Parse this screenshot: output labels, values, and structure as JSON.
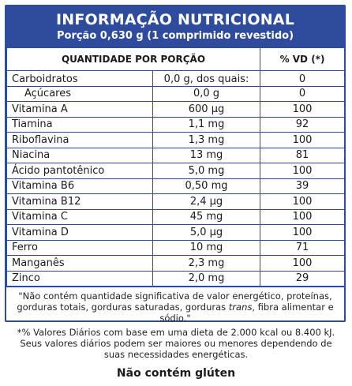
{
  "header": {
    "title": "INFORMAÇÃO NUTRICIONAL",
    "serving": "Porção 0,630 g (1 comprimido revestido)"
  },
  "table": {
    "col_quantity": "QUANTIDADE POR PORÇÃO",
    "col_vd": "% VD (*)",
    "rows": [
      {
        "name": "Carboidratos",
        "amount": "0,0 g, dos quais:",
        "vd": "0"
      },
      {
        "name": "Açúcares",
        "amount": "0,0 g",
        "vd": "0"
      },
      {
        "name": "Vitamina A",
        "amount": "600 µg",
        "vd": "100"
      },
      {
        "name": "Tiamina",
        "amount": "1,1 mg",
        "vd": "92"
      },
      {
        "name": "Riboflavina",
        "amount": "1,3 mg",
        "vd": "100"
      },
      {
        "name": "Niacina",
        "amount": "13 mg",
        "vd": "81"
      },
      {
        "name": "Ácido pantotênico",
        "amount": "5,0 mg",
        "vd": "100"
      },
      {
        "name": "Vitamina B6",
        "amount": "0,50 mg",
        "vd": "39"
      },
      {
        "name": "Vitamina B12",
        "amount": "2,4 µg",
        "vd": "100"
      },
      {
        "name": "Vitamina C",
        "amount": "45 mg",
        "vd": "100"
      },
      {
        "name": "Vitamina D",
        "amount": "5,0 µg",
        "vd": "100"
      },
      {
        "name": "Ferro",
        "amount": "10 mg",
        "vd": "71"
      },
      {
        "name": "Manganês",
        "amount": "2,3 mg",
        "vd": "100"
      },
      {
        "name": "Zinco",
        "amount": "2,0 mg",
        "vd": "29"
      }
    ]
  },
  "note": {
    "line1": "\"Não contém quantidade significativa de valor energético, proteínas,",
    "line2_before": "gorduras totais, gorduras saturadas, gorduras ",
    "line2_italic": "trans",
    "line2_after": ", fibra alimentar e sódio.\""
  },
  "footnote": "*% Valores Diários com base em uma dieta de 2.000 kcal ou 8.400 kJ. Seus valores diários podem ser maiores ou menores dependendo de suas necessidades energéticas.",
  "gluten": "Não contém glúten",
  "colors": {
    "header_bg": "#2f4b9e",
    "border": "#2f4b9e",
    "header_text": "#ffffff"
  }
}
